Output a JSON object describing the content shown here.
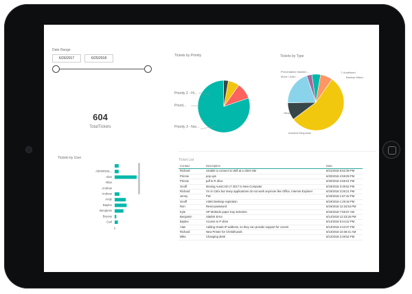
{
  "date_range": {
    "title": "Date Range",
    "start": "6/26/2017",
    "end": "6/25/2018"
  },
  "kpi": {
    "value": "604",
    "caption": "TotalTickets"
  },
  "chart_data": [
    {
      "type": "pie",
      "title": "Tickets by Priority",
      "labels": [
        "Priority 2 - High",
        "Priority 1 - Critical",
        "Priority 3 - Normal",
        "Other"
      ],
      "values": [
        7,
        10,
        80,
        3
      ],
      "colors": [
        "#f1c40f",
        "#fd625e",
        "#01b8aa",
        "#374649"
      ],
      "visible_labels": [
        "Priority 2 - Hi...",
        "Priorit...",
        "Priority 3 - Nor..."
      ]
    },
    {
      "type": "pie",
      "title": "Tickets by Type",
      "labels": [
        "Incident Response",
        "Other",
        "Move / Add / ...",
        "Preventative Mainten...",
        "? Undefined",
        "Backup Mana..."
      ],
      "values": [
        55,
        10,
        20,
        3,
        5,
        7
      ],
      "colors": [
        "#f2c80f",
        "#374649",
        "#8ad4eb",
        "#a66999",
        "#01b8aa",
        "#fe9666"
      ]
    },
    {
      "type": "bar",
      "title": "Tickets by User",
      "categories": [
        "",
        "Administra...",
        "Alan",
        "Allan",
        "Andrew",
        "Andrew",
        "Andy",
        "Baylee",
        "Benjamin",
        "Bryony",
        "Carl"
      ],
      "values": [
        10,
        10,
        100,
        0,
        0,
        12,
        28,
        30,
        22,
        4,
        8
      ],
      "xticks": [
        "0",
        "100"
      ]
    }
  ],
  "ticket_list": {
    "title": "Ticket List",
    "columns": [
      "Contact",
      "Description",
      "Date"
    ],
    "rows": [
      [
        "Richard",
        "Unable to connect to Wifi at a client site",
        "6/21/2018 8:52:39 PM"
      ],
      [
        "Prinnie",
        "pop ups",
        "6/20/2018 4:59:09 PM"
      ],
      [
        "Prinnie",
        "pdf in R drive",
        "6/20/2018 4:55:01 PM"
      ],
      [
        "Geoff",
        "Moving AutoCAD LT 2017 to New Computer",
        "6/19/2018 3:39:52 PM"
      ],
      [
        "Richard",
        "I'm in Citrix but many applications do not work anymore like Office, Internet Explorer",
        "6/19/2018 3:26:21 PM"
      ],
      [
        "Jenny",
        "FW:",
        "6/19/2018 1:57:42 PM"
      ],
      [
        "Geoff",
        "A360 Desktop expiration",
        "6/19/2018 1:29:18 PM"
      ],
      [
        "Ron",
        "Reset password",
        "6/19/2018 12:34:53 PM"
      ],
      [
        "Kyle",
        "HP M402dn paper tray selection",
        "6/15/2018 7:55:57 AM"
      ],
      [
        "Benjamin",
        "Sitelink Error",
        "6/14/2018 12:23:25 PM"
      ],
      [
        "Baylee",
        "Access to P drive",
        "6/14/2018 9:44:42 PM"
      ],
      [
        "Alan",
        "Adding Grade IP address, so they can provide support for covers",
        "6/13/2018 2:43:37 PM"
      ],
      [
        "Richard",
        "New Printer for Chrisbhunds",
        "6/13/2018 10:36:41 AM"
      ],
      [
        "Mike",
        "Changing desk",
        "6/12/2018 2:48:52 PM"
      ]
    ]
  }
}
